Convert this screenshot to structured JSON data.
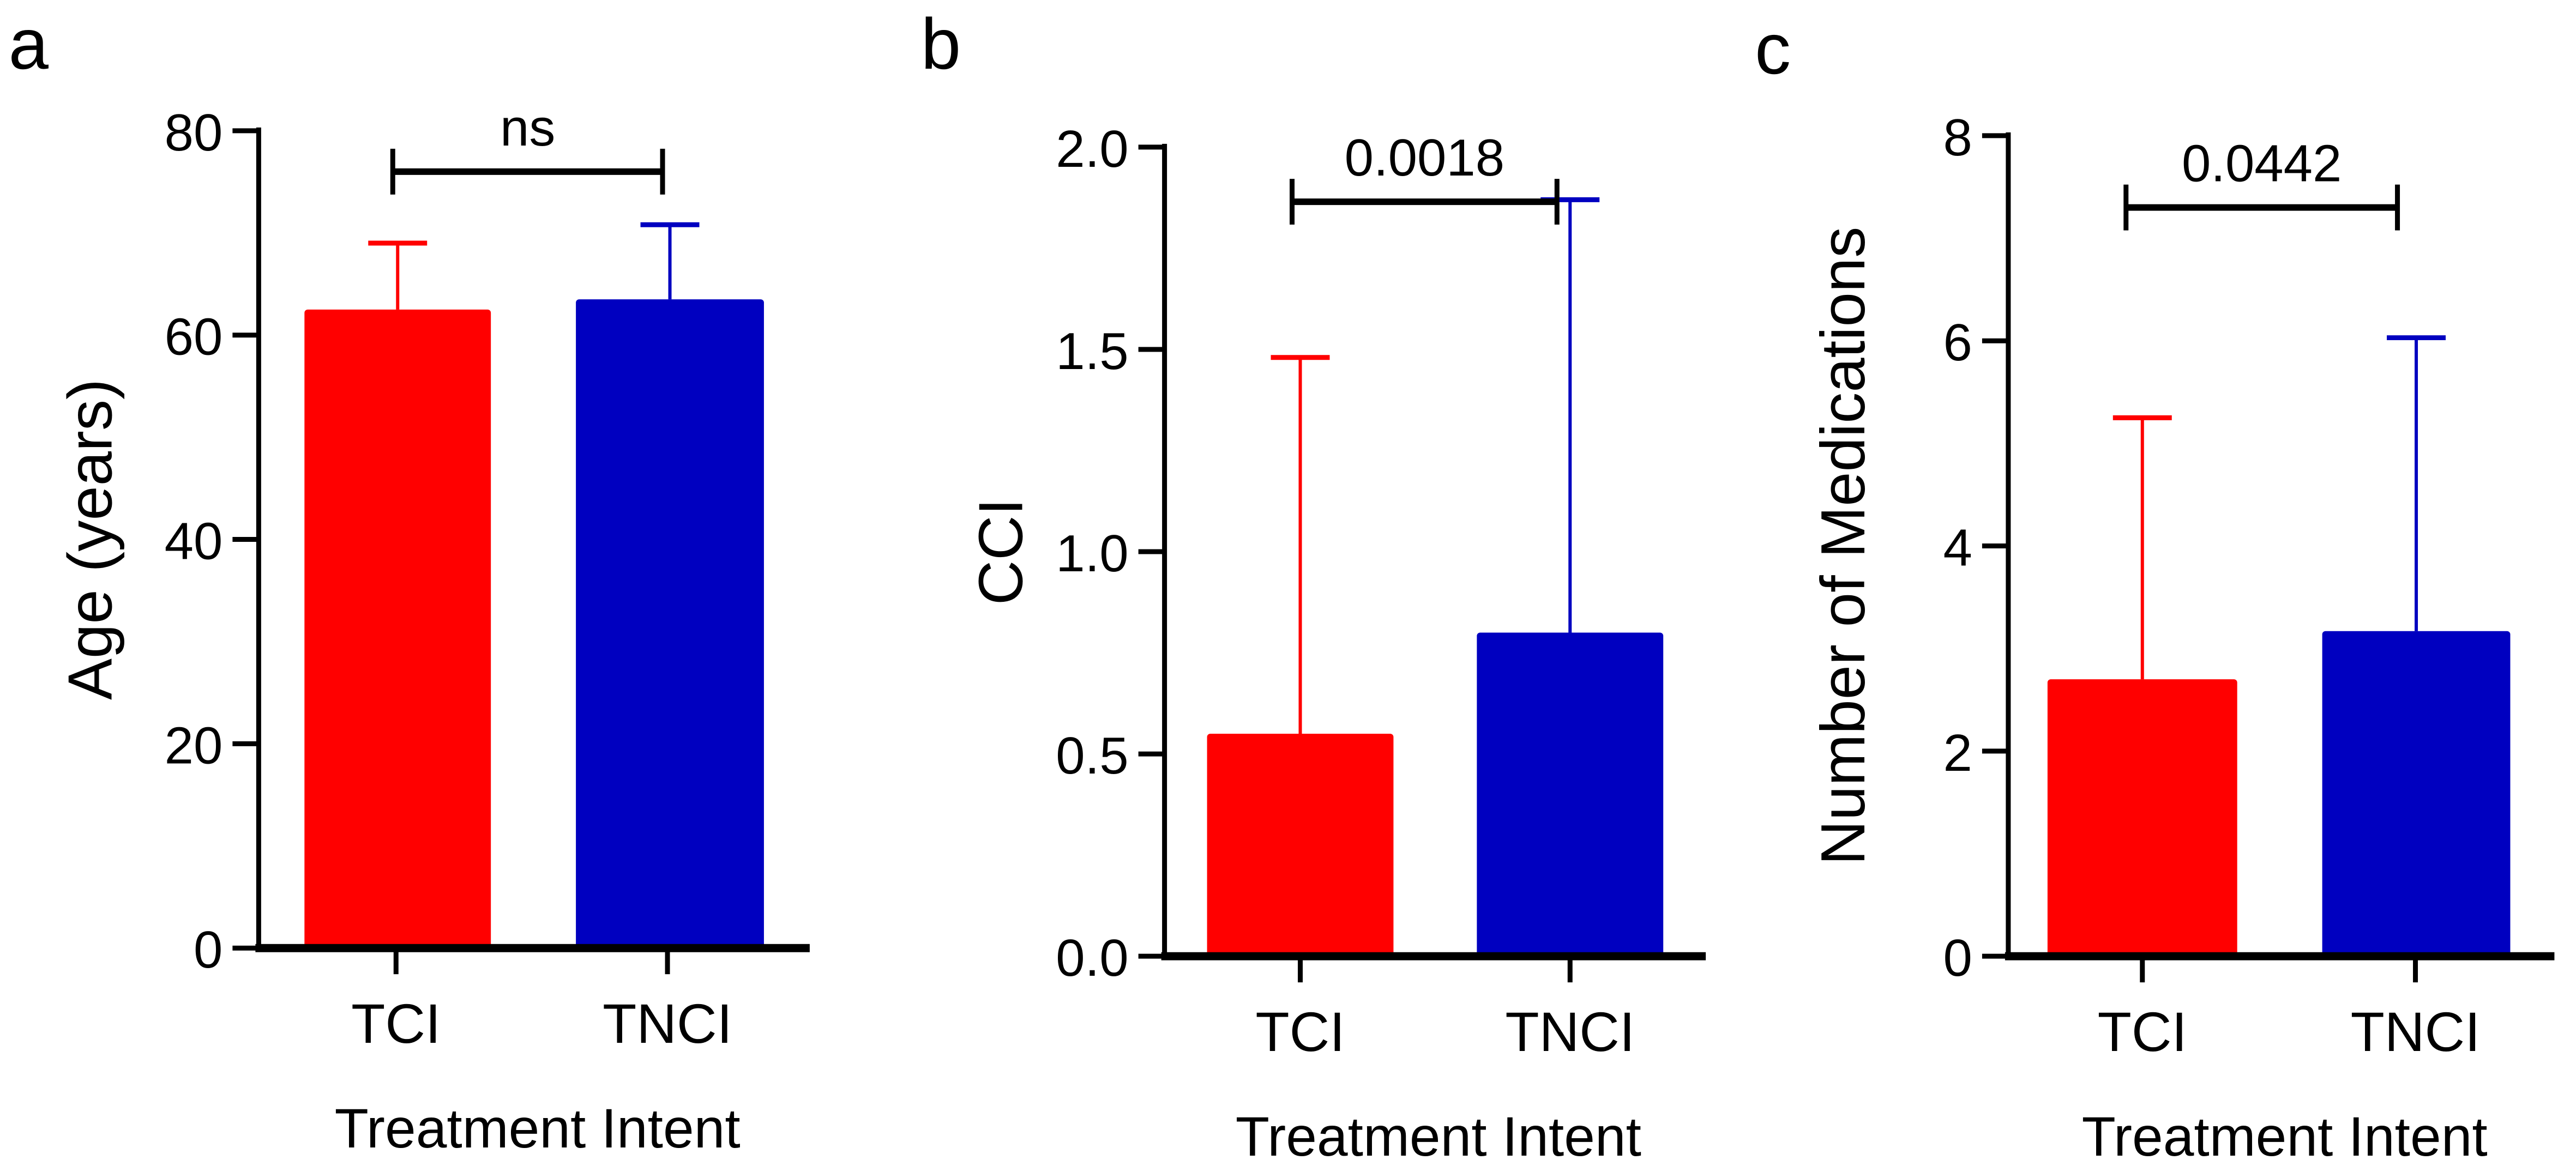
{
  "chart_data": [
    {
      "type": "bar",
      "panel_label": "a",
      "categories": [
        "TCI",
        "TNCI"
      ],
      "values": [
        62.5,
        63.5
      ],
      "error_upper": [
        69.0,
        70.8
      ],
      "colors": [
        "#ff0000",
        "#0000c0"
      ],
      "xlabel": "Treatment Intent",
      "ylabel": "Age (years)",
      "ylim": [
        0,
        80
      ],
      "yticks": [
        0,
        20,
        40,
        60,
        80
      ],
      "ytick_labels": [
        "0",
        "20",
        "40",
        "60",
        "80"
      ],
      "significance": {
        "label": "ns",
        "level": 76
      },
      "grid": false
    },
    {
      "type": "bar",
      "panel_label": "b",
      "categories": [
        "TCI",
        "TNCI"
      ],
      "values": [
        0.55,
        0.8
      ],
      "error_upper": [
        1.48,
        1.87
      ],
      "colors": [
        "#ff0000",
        "#0000c0"
      ],
      "xlabel": "Treatment Intent",
      "ylabel": "CCI",
      "ylim": [
        0,
        2.0
      ],
      "yticks": [
        0,
        0.5,
        1.0,
        1.5,
        2.0
      ],
      "ytick_labels": [
        "0.0",
        "0.5",
        "1.0",
        "1.5",
        "2.0"
      ],
      "significance": {
        "label": "0.0018",
        "level": 1.865
      },
      "grid": false
    },
    {
      "type": "bar",
      "panel_label": "c",
      "categories": [
        "TCI",
        "TNCI"
      ],
      "values": [
        2.7,
        3.17
      ],
      "error_upper": [
        5.25,
        6.03
      ],
      "colors": [
        "#ff0000",
        "#0000c0"
      ],
      "xlabel": "Treatment Intent",
      "ylabel": "Number of Medications",
      "ylim": [
        0,
        8
      ],
      "yticks": [
        0,
        2,
        4,
        6,
        8
      ],
      "ytick_labels": [
        "0",
        "2",
        "4",
        "6",
        "8"
      ],
      "significance": {
        "label": "0.0442",
        "level": 7.3
      },
      "grid": false
    }
  ]
}
